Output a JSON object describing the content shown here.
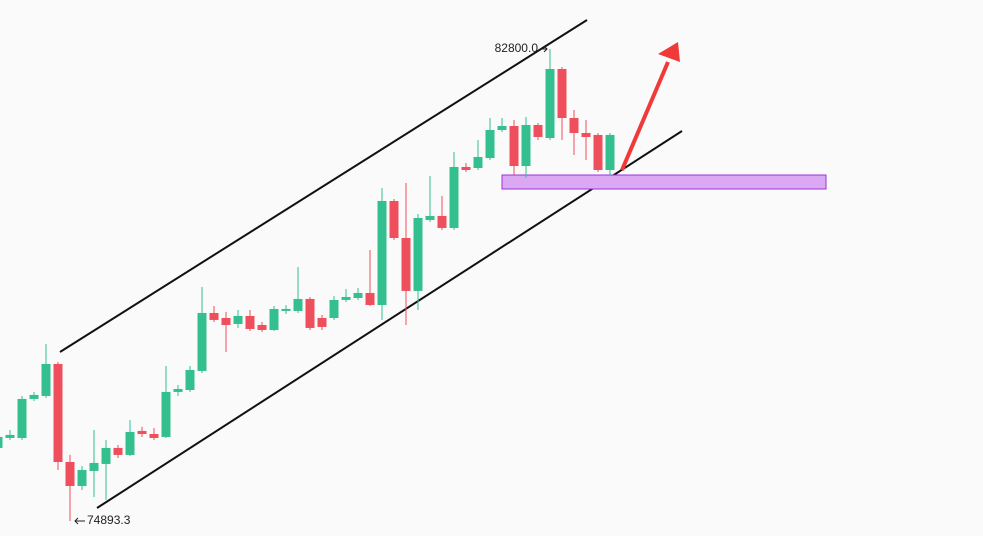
{
  "chart_data": {
    "type": "candlestick",
    "up_color": "#34bf8f",
    "down_color": "#ef4f5c",
    "open": [
      76117,
      76284,
      76284,
      76938,
      76988,
      77524,
      75882,
      75480,
      75732,
      75849,
      76117,
      76000,
      76402,
      76351,
      76301,
      77055,
      77088,
      77407,
      78378,
      78294,
      78194,
      78328,
      78177,
      78093,
      78412,
      78412,
      78613,
      78294,
      78294,
      78596,
      78629,
      78713,
      78512,
      80254,
      79634,
      78747,
      79936,
      80003,
      79802,
      80824,
      80807,
      80974,
      81443,
      81510,
      80840,
      81527,
      81309,
      82465,
      81644,
      81393,
      81360,
      80773
    ],
    "high": [
      76368,
      76418,
      76988,
      77055,
      77859,
      77557,
      76000,
      75815,
      76418,
      76251,
      76167,
      76586,
      76469,
      76452,
      77490,
      77172,
      77490,
      78814,
      78495,
      78395,
      78428,
      78428,
      78227,
      78495,
      78512,
      79149,
      78646,
      78345,
      78663,
      78780,
      78797,
      79433,
      80472,
      80288,
      80556,
      80036,
      80673,
      80338,
      81075,
      80891,
      81276,
      81644,
      81644,
      81611,
      81661,
      81561,
      82800,
      82499,
      81778,
      81611,
      81393,
      81393
    ],
    "low": [
      76050,
      76251,
      76251,
      76904,
      76954,
      75748,
      74893.3,
      75413,
      75296,
      75246,
      75949,
      75983,
      76301,
      76251,
      76284,
      76988,
      77055,
      77373,
      78227,
      77725,
      78127,
      78077,
      78060,
      78077,
      78361,
      78378,
      78093,
      78093,
      78261,
      78562,
      78596,
      78495,
      78261,
      79601,
      78177,
      78428,
      79902,
      79768,
      79768,
      80740,
      80773,
      80941,
      81410,
      80690,
      80639,
      81276,
      81276,
      81276,
      81025,
      80941,
      80740,
      80690
    ],
    "close": [
      76301,
      76335,
      76938,
      77005,
      77524,
      75882,
      75480,
      75748,
      75866,
      76117,
      76000,
      76385,
      76351,
      76284,
      77055,
      77105,
      77423,
      78378,
      78261,
      78177,
      78328,
      78110,
      78093,
      78445,
      78445,
      78613,
      78127,
      78144,
      78596,
      78646,
      78713,
      78512,
      80254,
      79634,
      78747,
      79969,
      80003,
      79802,
      80824,
      80773,
      80991,
      81443,
      81510,
      80840,
      81527,
      81326,
      82465,
      81644,
      81393,
      81326,
      80773,
      81360
    ],
    "high_label": {
      "value": 82800,
      "label": "82800.0"
    },
    "low_label": 74893.3
  }
}
